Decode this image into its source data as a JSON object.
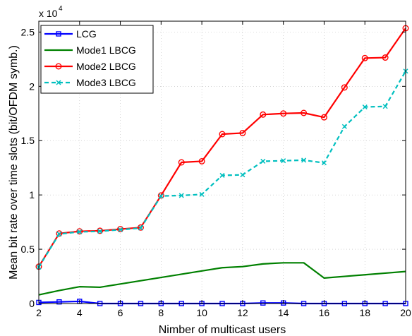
{
  "chart_data": {
    "type": "line",
    "title": "",
    "xlabel": "Nimber of multicast users",
    "ylabel": "Mean bit rate over time slots (bit/OFDM symb.)",
    "y_multiplier_label": "x 10",
    "y_multiplier_exponent": "4",
    "xlim": [
      2,
      20
    ],
    "ylim": [
      0,
      2.6
    ],
    "xticks": [
      2,
      4,
      6,
      8,
      10,
      12,
      14,
      16,
      18,
      20
    ],
    "yticks": [
      0,
      0.5,
      1,
      1.5,
      2,
      2.5
    ],
    "grid": true,
    "legend_position": "top-left",
    "x": [
      2,
      3,
      4,
      5,
      6,
      7,
      8,
      9,
      10,
      11,
      12,
      13,
      14,
      15,
      16,
      17,
      18,
      19,
      20
    ],
    "series": [
      {
        "name": "LCG",
        "color": "#0000ff",
        "line_style": "solid",
        "marker": "square",
        "values": [
          0.01,
          0.015,
          0.02,
          0.0,
          0.0,
          0.0,
          0.0,
          0.0,
          0.0,
          0.0,
          0.0,
          0.005,
          0.005,
          0.0,
          0.0,
          0.0,
          0.0,
          0.0,
          0.0
        ]
      },
      {
        "name": "Mode1 LBCG",
        "color": "#008000",
        "line_style": "solid",
        "marker": "none",
        "values": [
          0.08,
          0.12,
          0.155,
          0.15,
          0.18,
          0.21,
          0.24,
          0.27,
          0.3,
          0.33,
          0.34,
          0.365,
          0.375,
          0.375,
          0.235,
          0.25,
          0.265,
          0.28,
          0.295
        ]
      },
      {
        "name": "Mode2 LBCG",
        "color": "#ff0000",
        "line_style": "solid",
        "marker": "circle",
        "values": [
          0.34,
          0.645,
          0.665,
          0.67,
          0.685,
          0.7,
          0.995,
          1.3,
          1.31,
          1.56,
          1.57,
          1.74,
          1.75,
          1.755,
          1.715,
          1.99,
          2.26,
          2.265,
          2.535
        ]
      },
      {
        "name": "Mode3 LBCG",
        "color": "#00bfbf",
        "line_style": "dashed",
        "marker": "x",
        "values": [
          0.335,
          0.64,
          0.66,
          0.665,
          0.68,
          0.695,
          0.99,
          0.995,
          1.005,
          1.18,
          1.185,
          1.31,
          1.315,
          1.32,
          1.295,
          1.63,
          1.81,
          1.815,
          2.14
        ]
      }
    ]
  }
}
